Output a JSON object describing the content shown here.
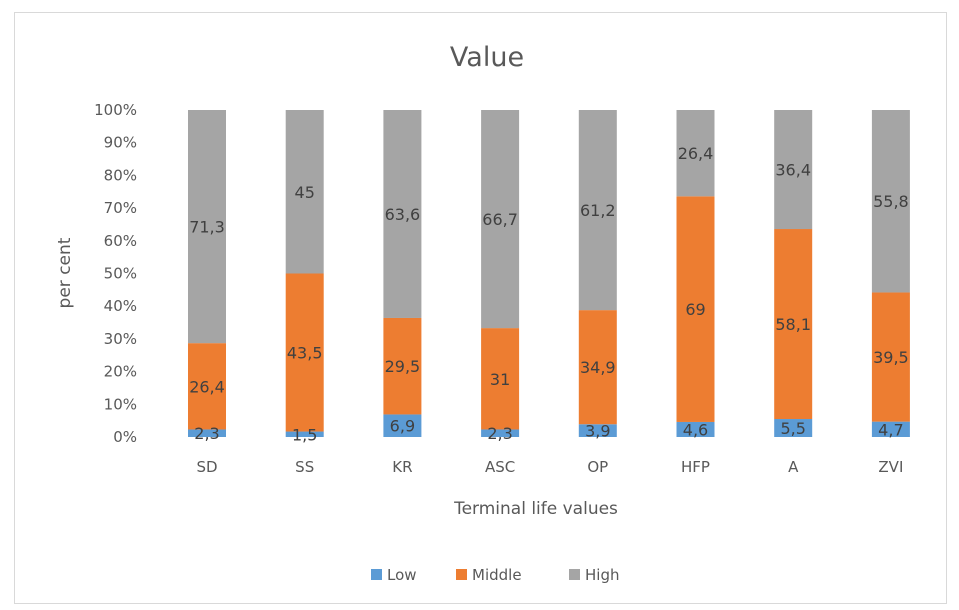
{
  "chart_data": {
    "type": "bar",
    "stacked": true,
    "percent_stacked": true,
    "title": "Value",
    "xlabel": "Terminal life values",
    "ylabel": "per cent",
    "ylim": [
      0,
      100
    ],
    "y_ticks": [
      "0%",
      "10%",
      "20%",
      "30%",
      "40%",
      "50%",
      "60%",
      "70%",
      "80%",
      "90%",
      "100%"
    ],
    "categories": [
      "SD",
      "SS",
      "KR",
      "ASC",
      "OP",
      "HFP",
      "A",
      "ZVI"
    ],
    "series": [
      {
        "name": "Low",
        "color": "#5b9bd5",
        "values": [
          2.3,
          1.5,
          6.9,
          2.3,
          3.9,
          4.6,
          5.5,
          4.7
        ],
        "labels": [
          "2,3",
          "1,5",
          "6,9",
          "2,3",
          "3,9",
          "4,6",
          "5,5",
          "4,7"
        ]
      },
      {
        "name": "Middle",
        "color": "#ed7d31",
        "values": [
          26.4,
          43.5,
          29.5,
          31,
          34.9,
          69,
          58.1,
          39.5
        ],
        "labels": [
          "26,4",
          "43,5",
          "29,5",
          "31",
          "34,9",
          "69",
          "58,1",
          "39,5"
        ]
      },
      {
        "name": "High",
        "color": "#a5a5a5",
        "values": [
          71.3,
          45,
          63.6,
          66.7,
          61.2,
          26.4,
          36.4,
          55.8
        ],
        "labels": [
          "71,3",
          "45",
          "63,6",
          "66,7",
          "61,2",
          "26,4",
          "36,4",
          "55,8"
        ]
      }
    ],
    "grid": false,
    "legend_position": "bottom"
  }
}
